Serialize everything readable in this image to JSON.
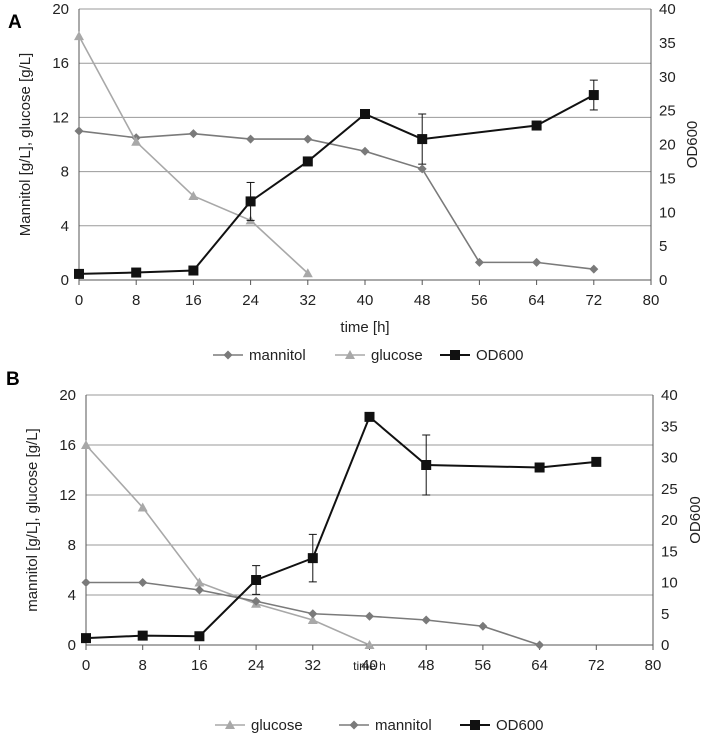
{
  "chart_data": [
    {
      "type": "line",
      "panel": "A",
      "xlabel": "time [h]",
      "ylabel": "Mannitol [g/L], glucose [g/L]",
      "y2label": "OD600",
      "xlim": [
        0,
        80
      ],
      "ylim": [
        0,
        20
      ],
      "y2lim": [
        0,
        40
      ],
      "xticks": [
        "0",
        "8",
        "16",
        "24",
        "32",
        "40",
        "48",
        "56",
        "64",
        "72",
        "80"
      ],
      "yticks": [
        "0",
        "4",
        "8",
        "12",
        "16",
        "20"
      ],
      "y2ticks": [
        "0",
        "5",
        "10",
        "15",
        "20",
        "25",
        "30",
        "35",
        "40"
      ],
      "grid": "horizontal",
      "legend_position": "bottom",
      "legend": [
        "mannitol",
        "glucose",
        "OD600"
      ],
      "series": [
        {
          "name": "mannitol",
          "axis": "left",
          "color": "#7a7a7a",
          "marker": "diamond",
          "x": [
            0,
            8,
            16,
            24,
            32,
            40,
            48,
            56,
            64,
            72
          ],
          "values": [
            11.0,
            10.5,
            10.8,
            10.4,
            10.4,
            9.5,
            8.2,
            1.3,
            1.3,
            0.8
          ]
        },
        {
          "name": "glucose",
          "axis": "left",
          "color": "#a8a8a8",
          "marker": "triangle",
          "x": [
            0,
            8,
            16,
            24,
            32
          ],
          "values": [
            18.0,
            10.2,
            6.2,
            4.4,
            0.5
          ]
        },
        {
          "name": "OD600",
          "axis": "right",
          "color": "#111111",
          "marker": "square",
          "x": [
            0,
            8,
            16,
            24,
            40,
            48,
            64,
            72,
            32
          ],
          "values": [
            0.9,
            1.1,
            1.4,
            11.6,
            24.5,
            20.8,
            22.8,
            27.3,
            17.5
          ],
          "errors": [
            0,
            0,
            0,
            2.8,
            0,
            3.7,
            0,
            2.2,
            0
          ]
        }
      ]
    },
    {
      "type": "line",
      "panel": "B",
      "xlabel": "time h",
      "ylabel": "mannitol [g/L], glucose [g/L]",
      "y2label": "OD600",
      "xlim": [
        0,
        80
      ],
      "ylim": [
        0,
        20
      ],
      "y2lim": [
        0,
        40
      ],
      "xticks": [
        "0",
        "8",
        "16",
        "24",
        "32",
        "40",
        "48",
        "56",
        "64",
        "72",
        "80"
      ],
      "yticks": [
        "0",
        "4",
        "8",
        "12",
        "16",
        "20"
      ],
      "y2ticks": [
        "0",
        "5",
        "10",
        "15",
        "20",
        "25",
        "30",
        "35",
        "40"
      ],
      "grid": "horizontal",
      "legend_position": "bottom",
      "legend": [
        "glucose",
        "mannitol",
        "OD600"
      ],
      "series": [
        {
          "name": "glucose",
          "axis": "left",
          "color": "#a8a8a8",
          "marker": "triangle",
          "x": [
            0,
            8,
            16,
            24,
            32,
            40
          ],
          "values": [
            16.0,
            11.0,
            5.0,
            3.3,
            2.0,
            0.0
          ]
        },
        {
          "name": "mannitol",
          "axis": "left",
          "color": "#7a7a7a",
          "marker": "diamond",
          "x": [
            0,
            8,
            16,
            24,
            32,
            40,
            48,
            56,
            64
          ],
          "values": [
            5.0,
            5.0,
            4.4,
            3.5,
            2.5,
            2.3,
            2.0,
            1.5,
            0.0
          ]
        },
        {
          "name": "OD600",
          "axis": "right",
          "color": "#111111",
          "marker": "square",
          "x": [
            0,
            8,
            16,
            24,
            32,
            40,
            48,
            64,
            72
          ],
          "values": [
            1.1,
            1.5,
            1.4,
            10.4,
            13.9,
            36.5,
            28.8,
            28.4,
            29.3
          ],
          "errors": [
            0,
            0,
            0,
            2.3,
            3.8,
            0,
            4.8,
            0,
            0
          ]
        }
      ]
    }
  ]
}
